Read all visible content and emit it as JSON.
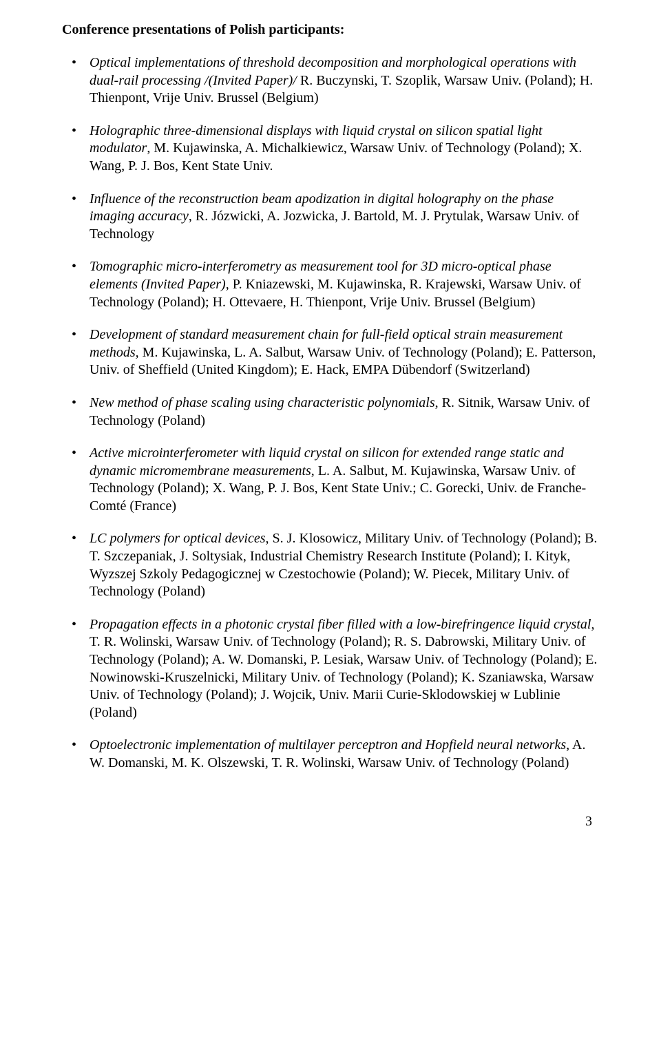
{
  "heading": "Conference presentations of Polish participants:",
  "items": [
    {
      "title": "Optical implementations of threshold decomposition and morphological operations with dual-rail processing /(Invited Paper)/",
      "rest": " R. Buczynski, T. Szoplik, Warsaw Univ. (Poland); H. Thienpont, Vrije Univ. Brussel (Belgium)"
    },
    {
      "title": "Holographic three-dimensional displays with liquid crystal on silicon spatial light modulator",
      "rest": ", M. Kujawinska, A. Michalkiewicz, Warsaw Univ. of Technology (Poland); X. Wang, P. J. Bos, Kent State Univ."
    },
    {
      "title": "Influence of the reconstruction beam apodization in digital holography on the phase imaging accuracy",
      "rest": ", R. Józwicki, A. Jozwicka, J. Bartold, M. J. Prytulak, Warsaw Univ. of Technology"
    },
    {
      "title": "Tomographic micro-interferometry as measurement tool for 3D micro-optical phase elements (Invited Paper)",
      "rest": ", P. Kniazewski, M. Kujawinska, R. Krajewski, Warsaw Univ. of Technology (Poland); H. Ottevaere, H. Thienpont, Vrije Univ. Brussel (Belgium)"
    },
    {
      "title": "Development of standard measurement chain for full-field optical strain measurement methods,",
      "rest": " M. Kujawinska, L. A. Salbut, Warsaw Univ. of Technology (Poland); E. Patterson, Univ. of Sheffield (United Kingdom); E. Hack, EMPA Dübendorf (Switzerland)"
    },
    {
      "title": "New method of phase scaling using characteristic polynomials",
      "rest": ", R. Sitnik, Warsaw Univ. of Technology (Poland)"
    },
    {
      "title": "Active microinterferometer with liquid crystal on silicon for extended range static and dynamic micromembrane measurements",
      "rest": ", L. A. Salbut, M. Kujawinska, Warsaw Univ. of Technology (Poland); X. Wang, P. J. Bos, Kent State Univ.; C. Gorecki, Univ. de Franche-Comté (France)"
    },
    {
      "title": "LC polymers for optical devices",
      "rest": ", S. J. Klosowicz, Military Univ. of Technology (Poland); B. T. Szczepaniak, J. Soltysiak, Industrial Chemistry Research Institute (Poland); I. Kityk, Wyzszej Szkoly Pedagogicznej w Czestochowie (Poland); W. Piecek, Military Univ. of Technology (Poland)"
    },
    {
      "title": "Propagation effects in a photonic crystal fiber filled with a low-birefringence liquid crystal",
      "rest": ", T. R. Wolinski, Warsaw Univ. of Technology (Poland); R. S. Dabrowski, Military Univ. of Technology (Poland); A. W. Domanski, P. Lesiak, Warsaw Univ. of Technology (Poland); E. Nowinowski-Kruszelnicki, Military Univ. of Technology (Poland); K. Szaniawska, Warsaw Univ. of Technology (Poland); J. Wojcik, Univ. Marii Curie-Sklodowskiej w Lublinie (Poland)"
    },
    {
      "title": "Optoelectronic implementation of multilayer perceptron and Hopfield neural networks",
      "rest": ", A. W. Domanski, M. K. Olszewski, T. R. Wolinski, Warsaw Univ. of Technology (Poland)"
    }
  ],
  "page_number": "3"
}
